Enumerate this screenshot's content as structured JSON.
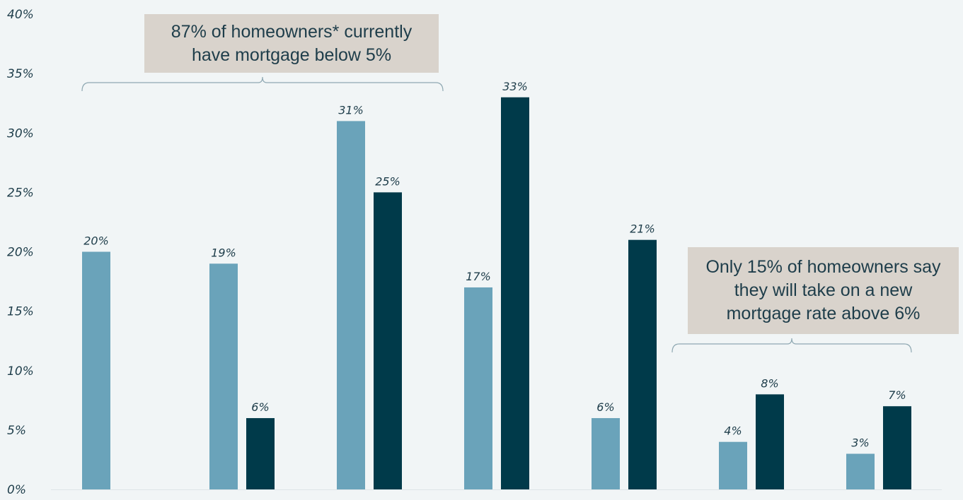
{
  "chart_data": {
    "type": "bar",
    "categories": [
      "",
      "",
      "",
      "",
      "",
      "",
      ""
    ],
    "series": [
      {
        "values": [
          20,
          19,
          31,
          17,
          6,
          4,
          3
        ],
        "color": "#6aa3ba"
      },
      {
        "values": [
          null,
          6,
          25,
          33,
          21,
          8,
          7
        ],
        "color": "#003a4a"
      }
    ],
    "data_labels": [
      [
        "20%",
        "19%",
        "31%",
        "17%",
        "6%",
        "4%",
        "3%"
      ],
      [
        "",
        "6%",
        "25%",
        "33%",
        "21%",
        "8%",
        "7%"
      ]
    ],
    "y_ticks": [
      "0%",
      "5%",
      "10%",
      "15%",
      "20%",
      "25%",
      "30%",
      "35%",
      "40%"
    ],
    "ylim": [
      0,
      40
    ],
    "grid": false,
    "legend": "none",
    "annotations": [
      {
        "lines": [
          "87% of homeowners* currently",
          "have mortgage below 5%"
        ],
        "bracket_from_category": 0,
        "bracket_to_category": 3
      },
      {
        "lines": [
          "Only 15% of homeowners say",
          "they will take on a new",
          "mortgage rate above 6%"
        ],
        "bracket_from_category": 5,
        "bracket_to_category": 6
      }
    ]
  },
  "colors": {
    "background": "#f1f5f6",
    "light_bar": "#6aa3ba",
    "dark_bar": "#003a4a",
    "callout_fill": "#d9d3cc",
    "text": "#1e3d4a",
    "bracket": "#8fa8b2"
  }
}
